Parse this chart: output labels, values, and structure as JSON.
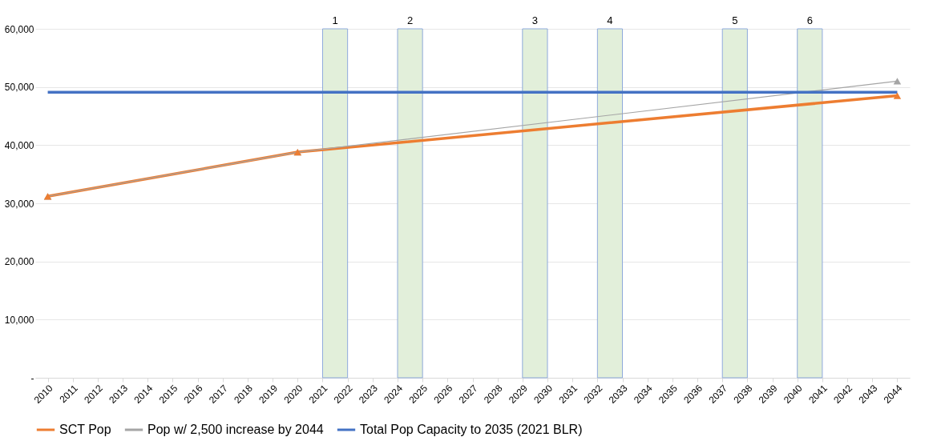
{
  "chart_data": {
    "type": "line",
    "xlim": [
      2009.5,
      2044.5
    ],
    "xticks": [
      2010,
      2011,
      2012,
      2013,
      2014,
      2015,
      2016,
      2017,
      2018,
      2019,
      2020,
      2021,
      2022,
      2023,
      2024,
      2025,
      2026,
      2027,
      2028,
      2029,
      2030,
      2031,
      2032,
      2033,
      2034,
      2035,
      2036,
      2037,
      2038,
      2039,
      2040,
      2041,
      2042,
      2043,
      2044
    ],
    "series": [
      {
        "name": "SCT Pop",
        "color": "#ed7d31",
        "x": [
          2010,
          2020,
          2044
        ],
        "values": [
          31200,
          38800,
          48500
        ],
        "marker": "triangle",
        "line_style": "solid"
      },
      {
        "name": "Pop w/ 2,500 increase by 2044",
        "color": "#a5a5a5",
        "x": [
          2010,
          2020,
          2044
        ],
        "values": [
          31200,
          38800,
          51000
        ],
        "marker": "triangle",
        "line_style": "solid"
      },
      {
        "name": "Total Pop Capacity to 2035 (2021 BLR)",
        "color": "#4472c4",
        "x": [
          2010,
          2044
        ],
        "values": [
          49100,
          49100
        ],
        "marker": "none",
        "line_style": "solid"
      }
    ],
    "ylim": [
      0,
      60000
    ],
    "yticks": [
      {
        "value": 0,
        "label": "-"
      },
      {
        "value": 10000,
        "label": "10,000"
      },
      {
        "value": 20000,
        "label": "20,000"
      },
      {
        "value": 30000,
        "label": "30,000"
      },
      {
        "value": 40000,
        "label": "40,000"
      },
      {
        "value": 50000,
        "label": "50,000"
      },
      {
        "value": 60000,
        "label": "60,000"
      }
    ],
    "grid": "y",
    "legend": "bottom",
    "bands": [
      {
        "axis": "x",
        "from": 2021,
        "to": 2022,
        "label": "1",
        "color": "#e2efda"
      },
      {
        "axis": "x",
        "from": 2024,
        "to": 2025,
        "label": "2",
        "color": "#e2efda"
      },
      {
        "axis": "x",
        "from": 2029,
        "to": 2030,
        "label": "3",
        "color": "#e2efda"
      },
      {
        "axis": "x",
        "from": 2032,
        "to": 2033,
        "label": "4",
        "color": "#e2efda"
      },
      {
        "axis": "x",
        "from": 2037,
        "to": 2038,
        "label": "5",
        "color": "#e2efda"
      },
      {
        "axis": "x",
        "from": 2040,
        "to": 2041,
        "label": "6",
        "color": "#e2efda"
      }
    ]
  }
}
